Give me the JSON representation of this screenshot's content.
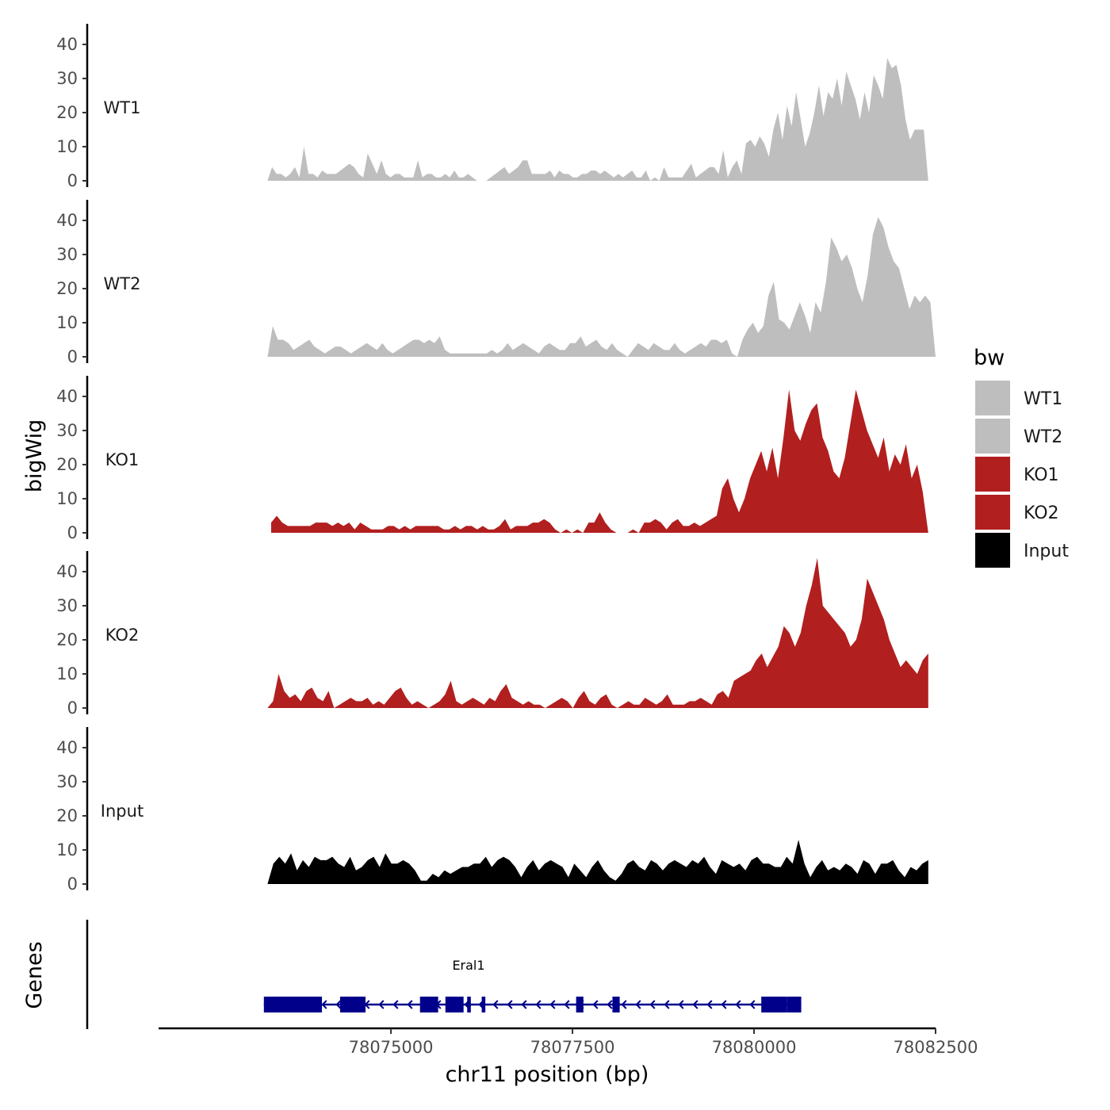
{
  "chart_data": {
    "type": "area",
    "ylabel": "bigWig",
    "xlabel": "chr11 position (bp)",
    "xlim": [
      78071800,
      78082500
    ],
    "ylim": [
      0,
      45
    ],
    "yticks": [
      0,
      10,
      20,
      30,
      40
    ],
    "xticks": [
      78075000,
      78077500,
      78080000,
      78082500
    ],
    "genes_label": "Genes",
    "series": [
      {
        "name": "WT1",
        "color": "#bebebe",
        "x_start": 78073300,
        "x_end": 78082400,
        "values": [
          0,
          4,
          2,
          2,
          1,
          2,
          4,
          1,
          10,
          2,
          2,
          1,
          3,
          2,
          2,
          2,
          3,
          4,
          5,
          4,
          2,
          1,
          8,
          5,
          2,
          6,
          2,
          1,
          2,
          2,
          1,
          1,
          1,
          6,
          1,
          2,
          2,
          1,
          1,
          2,
          1,
          3,
          1,
          1,
          2,
          1,
          0,
          0,
          0,
          1,
          2,
          3,
          4,
          2,
          3,
          4,
          6,
          6,
          2,
          2,
          2,
          2,
          3,
          1,
          3,
          2,
          2,
          1,
          1,
          2,
          2,
          3,
          3,
          2,
          3,
          2,
          1,
          2,
          1,
          2,
          3,
          1,
          1,
          3,
          0,
          1,
          0,
          4,
          1,
          1,
          1,
          1,
          3,
          5,
          1,
          2,
          3,
          4,
          4,
          2,
          9,
          1,
          4,
          6,
          2,
          11,
          12,
          10,
          13,
          11,
          7,
          15,
          20,
          12,
          22,
          16,
          26,
          18,
          10,
          14,
          20,
          28,
          19,
          26,
          24,
          30,
          22,
          32,
          28,
          24,
          18,
          26,
          20,
          31,
          28,
          24,
          36,
          33,
          34,
          28,
          18,
          12,
          15,
          15,
          15,
          0
        ]
      },
      {
        "name": "WT2",
        "color": "#bebebe",
        "x_start": 78073300,
        "x_end": 78082500,
        "values": [
          0,
          9,
          5,
          5,
          4,
          2,
          3,
          4,
          5,
          3,
          2,
          1,
          2,
          3,
          3,
          2,
          1,
          2,
          3,
          4,
          3,
          2,
          4,
          2,
          1,
          2,
          3,
          4,
          5,
          5,
          4,
          5,
          4,
          6,
          2,
          1,
          1,
          1,
          1,
          1,
          1,
          1,
          1,
          2,
          1,
          2,
          4,
          2,
          3,
          4,
          3,
          2,
          1,
          3,
          4,
          3,
          2,
          2,
          4,
          4,
          6,
          3,
          4,
          5,
          3,
          2,
          4,
          2,
          1,
          0,
          2,
          4,
          3,
          2,
          4,
          3,
          2,
          2,
          4,
          2,
          1,
          2,
          3,
          4,
          3,
          5,
          5,
          4,
          5,
          1,
          0,
          5,
          8,
          10,
          7,
          9,
          18,
          22,
          11,
          10,
          8,
          12,
          16,
          12,
          7,
          16,
          13,
          22,
          35,
          32,
          28,
          30,
          26,
          20,
          16,
          24,
          36,
          41,
          38,
          32,
          28,
          26,
          20,
          14,
          18,
          16,
          18,
          16,
          0
        ]
      },
      {
        "name": "KO1",
        "color": "#b21f1f",
        "x_start": 78073350,
        "x_end": 78082400,
        "values": [
          3,
          5,
          3,
          2,
          2,
          2,
          2,
          2,
          3,
          3,
          3,
          2,
          3,
          2,
          3,
          1,
          3,
          2,
          1,
          1,
          1,
          2,
          2,
          1,
          2,
          1,
          2,
          2,
          2,
          2,
          2,
          1,
          1,
          2,
          1,
          2,
          2,
          1,
          2,
          1,
          1,
          2,
          4,
          1,
          2,
          2,
          2,
          3,
          3,
          4,
          3,
          1,
          0,
          1,
          0,
          1,
          0,
          3,
          3,
          6,
          3,
          1,
          0,
          0,
          0,
          1,
          0,
          3,
          3,
          4,
          3,
          1,
          3,
          4,
          2,
          2,
          3,
          2,
          3,
          4,
          5,
          13,
          16,
          10,
          6,
          10,
          16,
          20,
          24,
          18,
          25,
          16,
          28,
          42,
          30,
          27,
          32,
          36,
          38,
          28,
          24,
          18,
          16,
          22,
          32,
          42,
          36,
          30,
          26,
          22,
          28,
          18,
          23,
          20,
          26,
          16,
          20,
          12,
          0
        ]
      },
      {
        "name": "KO2",
        "color": "#b21f1f",
        "x_start": 78073300,
        "x_end": 78082400,
        "values": [
          0,
          2,
          10,
          5,
          3,
          4,
          2,
          5,
          6,
          3,
          2,
          5,
          0,
          1,
          2,
          3,
          2,
          2,
          3,
          1,
          2,
          1,
          3,
          5,
          6,
          3,
          1,
          2,
          1,
          0,
          1,
          2,
          4,
          8,
          2,
          1,
          2,
          3,
          2,
          1,
          3,
          2,
          5,
          7,
          3,
          2,
          1,
          2,
          1,
          1,
          0,
          1,
          2,
          3,
          2,
          0,
          3,
          5,
          2,
          1,
          3,
          4,
          1,
          0,
          1,
          2,
          1,
          1,
          3,
          2,
          1,
          2,
          4,
          1,
          1,
          1,
          2,
          2,
          3,
          2,
          1,
          4,
          5,
          3,
          8,
          9,
          10,
          11,
          14,
          16,
          12,
          15,
          18,
          24,
          22,
          18,
          22,
          30,
          36,
          44,
          30,
          28,
          26,
          24,
          22,
          18,
          20,
          26,
          38,
          34,
          30,
          26,
          20,
          16,
          12,
          14,
          12,
          10,
          14,
          16
        ]
      },
      {
        "name": "Input",
        "color": "#000000",
        "x_start": 78073300,
        "x_end": 78082400,
        "values": [
          0,
          6,
          8,
          6,
          9,
          4,
          7,
          5,
          8,
          7,
          7,
          8,
          6,
          5,
          8,
          4,
          5,
          7,
          8,
          5,
          9,
          6,
          6,
          7,
          6,
          4,
          1,
          1,
          3,
          2,
          4,
          3,
          4,
          5,
          5,
          6,
          6,
          8,
          5,
          7,
          8,
          7,
          5,
          2,
          5,
          7,
          4,
          6,
          7,
          6,
          5,
          2,
          6,
          4,
          2,
          5,
          7,
          4,
          2,
          1,
          3,
          6,
          7,
          5,
          4,
          7,
          6,
          4,
          6,
          7,
          6,
          5,
          7,
          6,
          8,
          5,
          3,
          7,
          6,
          5,
          6,
          4,
          7,
          8,
          6,
          6,
          5,
          5,
          8,
          6,
          13,
          6,
          2,
          5,
          7,
          4,
          5,
          4,
          6,
          5,
          3,
          7,
          6,
          3,
          6,
          6,
          7,
          4,
          2,
          5,
          4,
          6,
          7
        ]
      }
    ],
    "gene": {
      "name": "Eral1",
      "strand": "-",
      "color": "#00008b",
      "start": 78073250,
      "end": 78080650,
      "exons": [
        [
          78073250,
          78074050
        ],
        [
          78074300,
          78074650
        ],
        [
          78075400,
          78075650
        ],
        [
          78075750,
          78076000
        ],
        [
          78076050,
          78076100
        ],
        [
          78076250,
          78076300
        ],
        [
          78077550,
          78077650
        ],
        [
          78078050,
          78078150
        ],
        [
          78080100,
          78080450
        ],
        [
          78080450,
          78080650
        ]
      ]
    },
    "legend": {
      "title": "bw",
      "entries": [
        {
          "label": "WT1",
          "color": "#bebebe"
        },
        {
          "label": "WT2",
          "color": "#bebebe"
        },
        {
          "label": "KO1",
          "color": "#b21f1f"
        },
        {
          "label": "KO2",
          "color": "#b21f1f"
        },
        {
          "label": "Input",
          "color": "#000000"
        }
      ]
    }
  }
}
